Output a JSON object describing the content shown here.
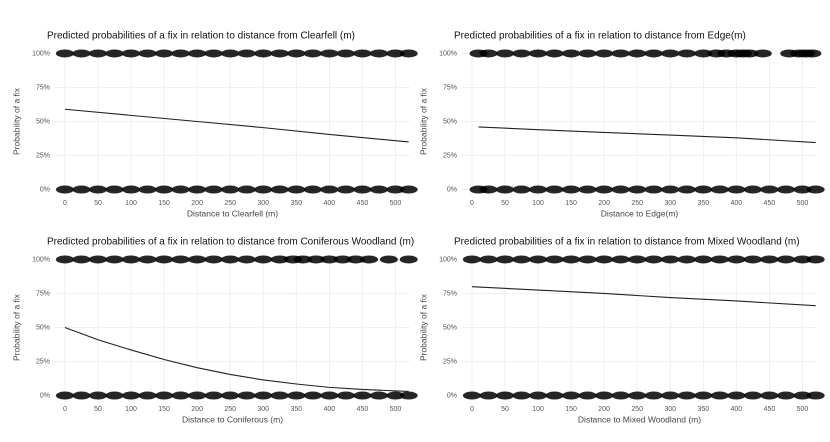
{
  "chart_data": [
    {
      "type": "line",
      "title": "Predicted probabilities of a fix in relation to distance from Clearfell (m)",
      "x_label": "Distance to Clearfell (m)",
      "y_label": "Probability of a fix",
      "xlim": [
        -15,
        522
      ],
      "xticks": [
        0,
        50,
        100,
        150,
        200,
        250,
        300,
        350,
        400,
        450,
        500
      ],
      "ylim": [
        -4,
        104
      ],
      "yticks": [
        {
          "value": 0,
          "label": "0%"
        },
        {
          "value": 25,
          "label": "25%"
        },
        {
          "value": 50,
          "label": "50%"
        },
        {
          "value": 75,
          "label": "75%"
        },
        {
          "value": 100,
          "label": "100%"
        }
      ],
      "grid": true,
      "series": [
        {
          "color": "#222222",
          "x": [
            0,
            100,
            200,
            300,
            400,
            520
          ],
          "values": [
            59,
            54.5,
            50,
            45.5,
            40.5,
            35
          ]
        }
      ],
      "observations": [
        {
          "color": "#000000",
          "x": [
            0,
            25,
            50,
            75,
            100,
            125,
            150,
            175,
            200,
            225,
            250,
            275,
            300,
            325,
            350,
            375,
            400,
            425,
            450,
            475,
            500,
            520
          ],
          "values": [
            100,
            100,
            100,
            100,
            100,
            100,
            100,
            100,
            100,
            100,
            100,
            100,
            100,
            100,
            100,
            100,
            100,
            100,
            100,
            100,
            100,
            100
          ]
        },
        {
          "color": "#000000",
          "x": [
            0,
            25,
            50,
            75,
            100,
            125,
            150,
            175,
            200,
            225,
            250,
            275,
            300,
            325,
            350,
            375,
            400,
            425,
            450,
            475,
            500,
            520
          ],
          "values": [
            0,
            0,
            0,
            0,
            0,
            0,
            0,
            0,
            0,
            0,
            0,
            0,
            0,
            0,
            0,
            0,
            0,
            0,
            0,
            0,
            0,
            0
          ]
        }
      ]
    },
    {
      "type": "line",
      "title": "Predicted probabilities of a fix in relation to distance from Edge(m)",
      "x_label": "Distance to Edge(m)",
      "y_label": "Probability of a fix",
      "xlim": [
        -15,
        522
      ],
      "xticks": [
        0,
        50,
        100,
        150,
        200,
        250,
        300,
        350,
        400,
        450,
        500
      ],
      "ylim": [
        -4,
        104
      ],
      "yticks": [
        {
          "value": 0,
          "label": "0%"
        },
        {
          "value": 25,
          "label": "25%"
        },
        {
          "value": 50,
          "label": "50%"
        },
        {
          "value": 75,
          "label": "75%"
        },
        {
          "value": 100,
          "label": "100%"
        }
      ],
      "grid": true,
      "series": [
        {
          "color": "#222222",
          "x": [
            10,
            100,
            200,
            300,
            400,
            520
          ],
          "values": [
            46,
            44,
            42,
            40,
            38,
            34.5
          ]
        }
      ],
      "observations": [
        {
          "color": "#000000",
          "x": [
            10,
            25,
            50,
            75,
            100,
            125,
            150,
            175,
            200,
            225,
            250,
            275,
            300,
            325,
            350,
            370,
            385,
            400,
            410,
            420,
            440,
            480,
            495,
            505,
            515
          ],
          "values": [
            100,
            100,
            100,
            100,
            100,
            100,
            100,
            100,
            100,
            100,
            100,
            100,
            100,
            100,
            100,
            100,
            100,
            100,
            100,
            100,
            100,
            100,
            100,
            100,
            100
          ]
        },
        {
          "color": "#000000",
          "x": [
            10,
            25,
            50,
            75,
            100,
            125,
            150,
            175,
            200,
            225,
            250,
            275,
            300,
            325,
            350,
            375,
            400,
            425,
            450,
            475,
            500,
            520
          ],
          "values": [
            0,
            0,
            0,
            0,
            0,
            0,
            0,
            0,
            0,
            0,
            0,
            0,
            0,
            0,
            0,
            0,
            0,
            0,
            0,
            0,
            0,
            0
          ]
        }
      ]
    },
    {
      "type": "line",
      "title": "Predicted probabilities of a fix in relation to distance from Coniferous Woodland (m)",
      "x_label": "Distance to Coniferous (m)",
      "y_label": "Probability of a fix",
      "xlim": [
        -15,
        522
      ],
      "xticks": [
        0,
        50,
        100,
        150,
        200,
        250,
        300,
        350,
        400,
        450,
        500
      ],
      "ylim": [
        -4,
        104
      ],
      "yticks": [
        {
          "value": 0,
          "label": "0%"
        },
        {
          "value": 25,
          "label": "25%"
        },
        {
          "value": 50,
          "label": "50%"
        },
        {
          "value": 75,
          "label": "75%"
        },
        {
          "value": 100,
          "label": "100%"
        }
      ],
      "grid": true,
      "series": [
        {
          "color": "#222222",
          "x": [
            0,
            50,
            100,
            150,
            200,
            250,
            300,
            350,
            400,
            450,
            520
          ],
          "values": [
            50,
            41,
            33.5,
            26.5,
            20.5,
            15.5,
            11.5,
            8.5,
            6,
            4.5,
            3
          ]
        }
      ],
      "observations": [
        {
          "color": "#000000",
          "x": [
            0,
            25,
            50,
            75,
            100,
            125,
            150,
            175,
            200,
            225,
            250,
            275,
            300,
            325,
            345,
            360,
            380,
            400,
            420,
            440,
            460,
            490,
            520
          ],
          "values": [
            100,
            100,
            100,
            100,
            100,
            100,
            100,
            100,
            100,
            100,
            100,
            100,
            100,
            100,
            100,
            100,
            100,
            100,
            100,
            100,
            100,
            100,
            100
          ]
        },
        {
          "color": "#000000",
          "x": [
            0,
            25,
            50,
            75,
            100,
            125,
            150,
            175,
            200,
            225,
            250,
            275,
            300,
            325,
            350,
            375,
            400,
            425,
            450,
            475,
            500,
            520
          ],
          "values": [
            0,
            0,
            0,
            0,
            0,
            0,
            0,
            0,
            0,
            0,
            0,
            0,
            0,
            0,
            0,
            0,
            0,
            0,
            0,
            0,
            0,
            0
          ]
        }
      ]
    },
    {
      "type": "line",
      "title": "Predicted probabilities of a fix in relation to distance from Mixed Woodland (m)",
      "x_label": "Distance to Mixed Woodland (m)",
      "y_label": "Probability of a fix",
      "xlim": [
        -15,
        522
      ],
      "xticks": [
        0,
        50,
        100,
        150,
        200,
        250,
        300,
        350,
        400,
        450,
        500
      ],
      "ylim": [
        -4,
        104
      ],
      "yticks": [
        {
          "value": 0,
          "label": "0%"
        },
        {
          "value": 25,
          "label": "25%"
        },
        {
          "value": 50,
          "label": "50%"
        },
        {
          "value": 75,
          "label": "75%"
        },
        {
          "value": 100,
          "label": "100%"
        }
      ],
      "grid": true,
      "series": [
        {
          "color": "#222222",
          "x": [
            0,
            100,
            200,
            300,
            400,
            520
          ],
          "values": [
            80,
            77.5,
            75,
            72,
            69.5,
            66
          ]
        }
      ],
      "observations": [
        {
          "color": "#000000",
          "x": [
            0,
            25,
            50,
            75,
            100,
            125,
            150,
            175,
            200,
            225,
            250,
            275,
            300,
            325,
            350,
            375,
            400,
            425,
            450,
            475,
            500,
            520
          ],
          "values": [
            100,
            100,
            100,
            100,
            100,
            100,
            100,
            100,
            100,
            100,
            100,
            100,
            100,
            100,
            100,
            100,
            100,
            100,
            100,
            100,
            100,
            100
          ]
        },
        {
          "color": "#000000",
          "x": [
            0,
            25,
            50,
            75,
            100,
            125,
            150,
            175,
            200,
            225,
            250,
            275,
            300,
            325,
            350,
            375,
            400,
            425,
            450,
            475,
            500,
            520
          ],
          "values": [
            0,
            0,
            0,
            0,
            0,
            0,
            0,
            0,
            0,
            0,
            0,
            0,
            0,
            0,
            0,
            0,
            0,
            0,
            0,
            0,
            0,
            0
          ]
        }
      ]
    }
  ]
}
